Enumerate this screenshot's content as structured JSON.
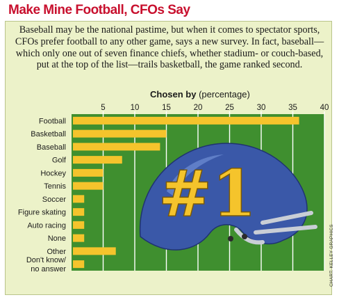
{
  "title": "Make Mine Football, CFOs Say",
  "intro": "Baseball may be the national pastime, but when it comes to spectator sports, CFOs prefer football to any other game, says a new survey. In fact, baseball—which only one out of seven finance chiefs, whether stadium- or couch-based, put at the top of the list—trails basketball, the game ranked second.",
  "credit": "CHART: KELLEY GRAPHICS",
  "helmet_text": "#1",
  "colors": {
    "title": "#c8102e",
    "field": "#3f8f2f",
    "bar": "#f5c42c",
    "helmet": "#3a58a8",
    "panel": "#ecf2c9"
  },
  "chart_data": {
    "type": "bar",
    "orientation": "horizontal",
    "title_bold": "Chosen by",
    "title_rest": " (percentage)",
    "categories": [
      "Football",
      "Basketball",
      "Baseball",
      "Golf",
      "Hockey",
      "Tennis",
      "Soccer",
      "Figure skating",
      "Auto racing",
      "None",
      "Other",
      "Don't know/\nno answer"
    ],
    "values": [
      36,
      15,
      14,
      8,
      5,
      5,
      2,
      2,
      2,
      2,
      7,
      2
    ],
    "xlim": [
      0,
      40
    ],
    "xticks": [
      5,
      10,
      15,
      20,
      25,
      30,
      35,
      40
    ],
    "grid": true
  }
}
